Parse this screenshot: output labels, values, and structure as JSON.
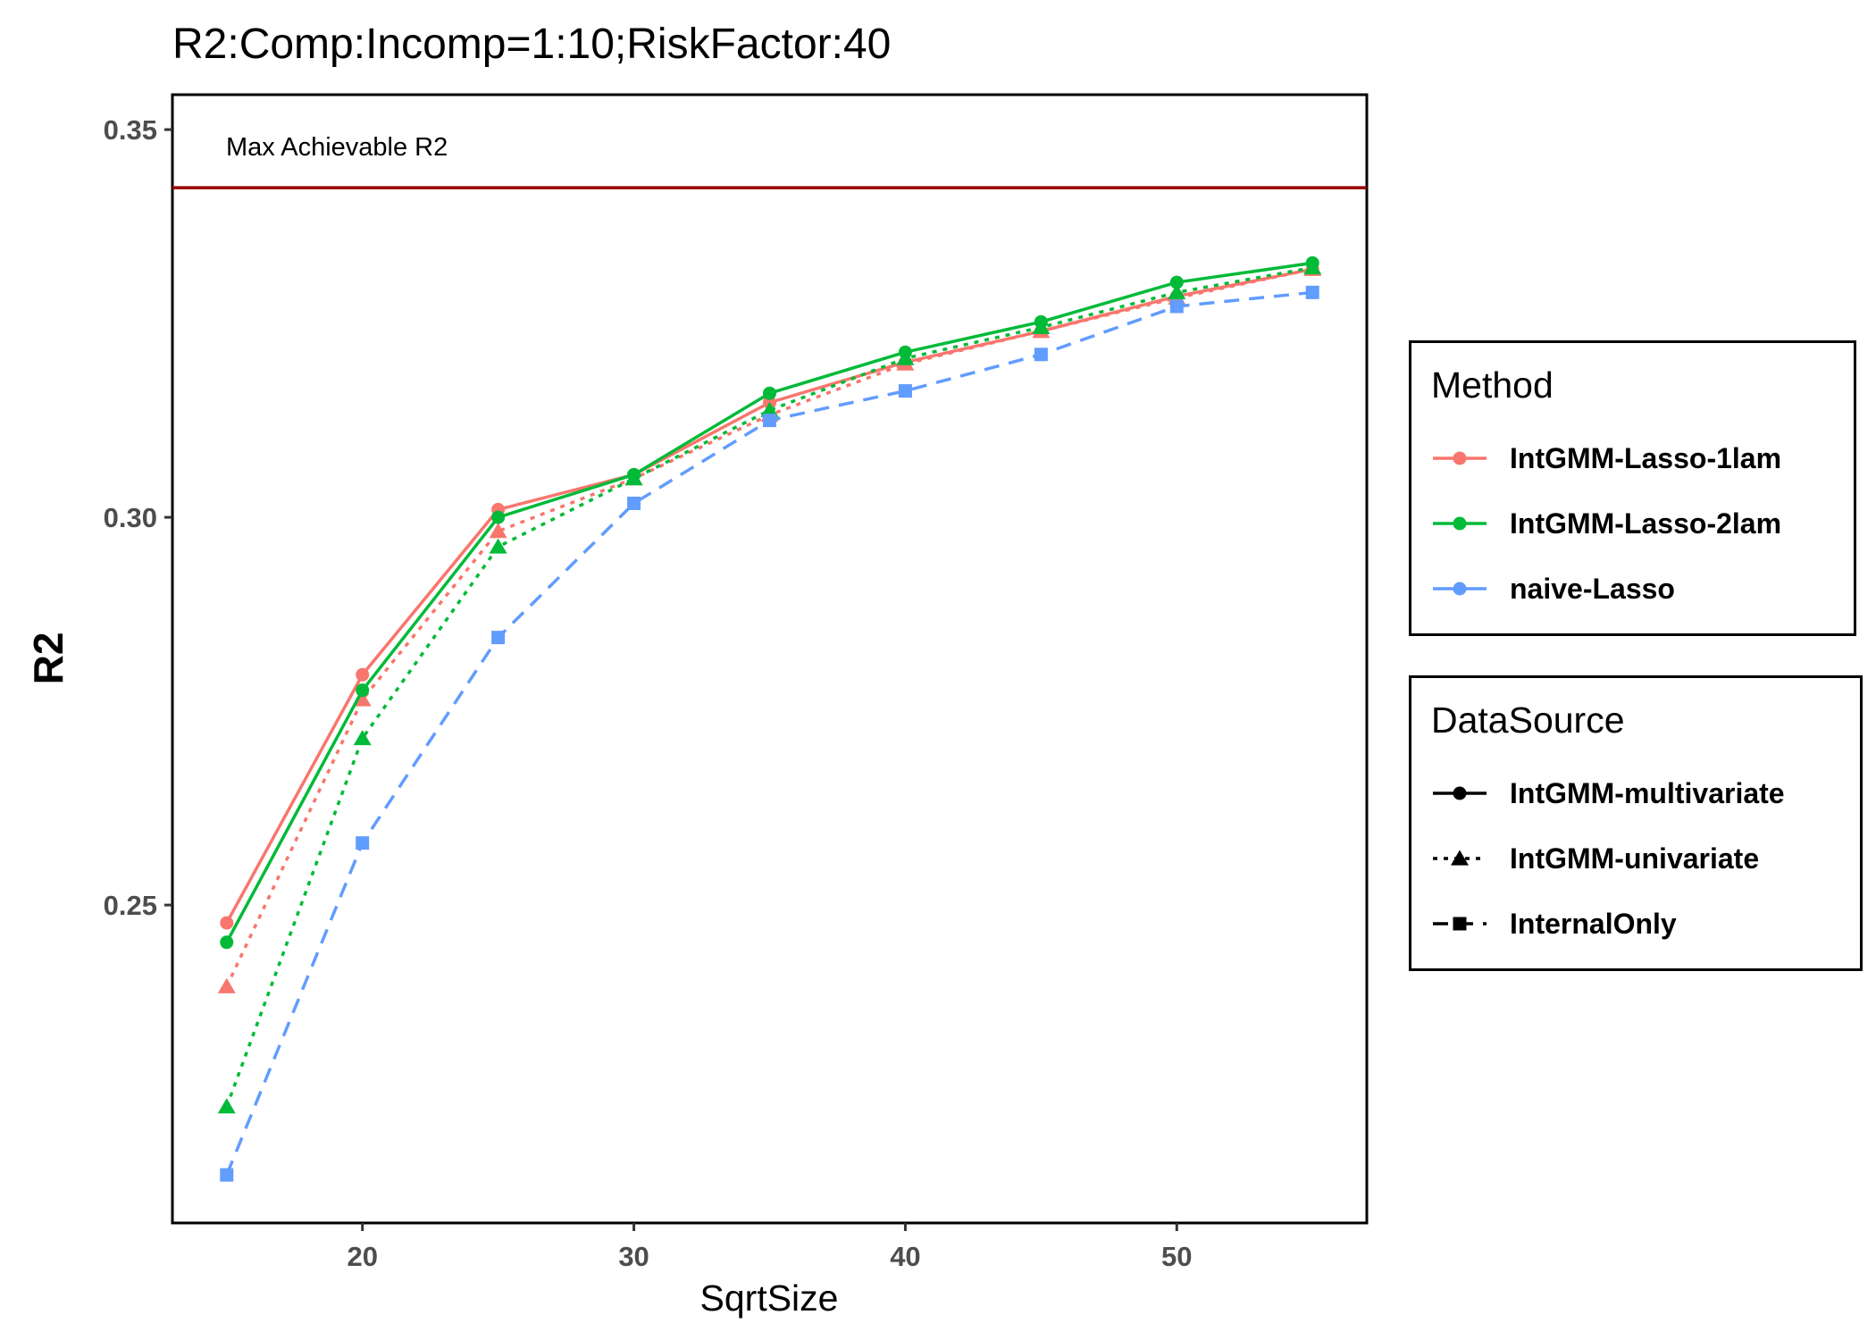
{
  "chart_data": {
    "type": "line",
    "title": "R2:Comp:Incomp=1:10;RiskFactor:40",
    "xlabel": "SqrtSize",
    "ylabel": "R2",
    "x": [
      15,
      20,
      25,
      30,
      35,
      40,
      45,
      50,
      55
    ],
    "xticks": [
      "20",
      "30",
      "40",
      "50"
    ],
    "yticks": [
      "0.25",
      "0.30",
      "0.35"
    ],
    "xlim": [
      13,
      57
    ],
    "ylim": [
      0.209,
      0.3545
    ],
    "reference_line": {
      "value": 0.3425,
      "label": "Max Achievable R2",
      "color": "#990000"
    },
    "series": [
      {
        "method": "IntGMM-Lasso-1lam",
        "datasource": "IntGMM-multivariate",
        "color": "#F8766D",
        "linetype": "solid",
        "marker": "circle",
        "values": [
          0.2477,
          0.2797,
          0.301,
          0.3055,
          0.3148,
          0.32,
          0.324,
          0.3285,
          0.332
        ]
      },
      {
        "method": "IntGMM-Lasso-1lam",
        "datasource": "IntGMM-univariate",
        "color": "#F8766D",
        "linetype": "dotted",
        "marker": "triangle",
        "values": [
          0.2395,
          0.2765,
          0.2982,
          0.305,
          0.3132,
          0.3198,
          0.324,
          0.3283,
          0.332
        ]
      },
      {
        "method": "IntGMM-Lasso-2lam",
        "datasource": "IntGMM-multivariate",
        "color": "#00BA38",
        "linetype": "solid",
        "marker": "circle",
        "values": [
          0.2452,
          0.2777,
          0.3,
          0.3055,
          0.316,
          0.3213,
          0.3252,
          0.3303,
          0.3328
        ]
      },
      {
        "method": "IntGMM-Lasso-2lam",
        "datasource": "IntGMM-univariate",
        "color": "#00BA38",
        "linetype": "dotted",
        "marker": "triangle",
        "values": [
          0.224,
          0.2715,
          0.2962,
          0.305,
          0.3138,
          0.3205,
          0.3245,
          0.329,
          0.3322
        ]
      },
      {
        "method": "naive-Lasso",
        "datasource": "InternalOnly",
        "color": "#619CFF",
        "linetype": "dashed",
        "marker": "square",
        "values": [
          0.2152,
          0.258,
          0.2845,
          0.3018,
          0.3125,
          0.3163,
          0.321,
          0.3272,
          0.329
        ]
      }
    ],
    "grid": false,
    "legend_position": "right"
  },
  "legends": {
    "method": {
      "title": "Method",
      "items": [
        {
          "label": "IntGMM-Lasso-1lam",
          "color": "#F8766D"
        },
        {
          "label": "IntGMM-Lasso-2lam",
          "color": "#00BA38"
        },
        {
          "label": "naive-Lasso",
          "color": "#619CFF"
        }
      ]
    },
    "datasource": {
      "title": "DataSource",
      "items": [
        {
          "label": "IntGMM-multivariate",
          "linetype": "solid",
          "marker": "circle"
        },
        {
          "label": "IntGMM-univariate",
          "linetype": "dotted",
          "marker": "triangle"
        },
        {
          "label": "InternalOnly",
          "linetype": "dashed",
          "marker": "square"
        }
      ]
    }
  }
}
